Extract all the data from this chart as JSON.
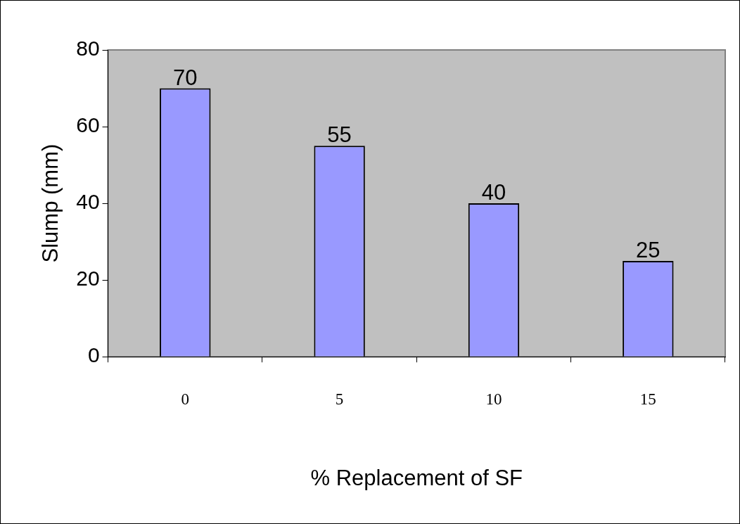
{
  "chart_data": {
    "type": "bar",
    "xlabel": "% Replacement of SF",
    "ylabel": "Slump (mm)",
    "categories": [
      "0",
      "5",
      "10",
      "15"
    ],
    "values": [
      70,
      55,
      40,
      25
    ],
    "color": "#9999ff",
    "ylim": [
      0,
      80
    ],
    "yticks": [
      0,
      20,
      40,
      60,
      80
    ],
    "data_labels": true,
    "grid": false,
    "legend": false
  }
}
